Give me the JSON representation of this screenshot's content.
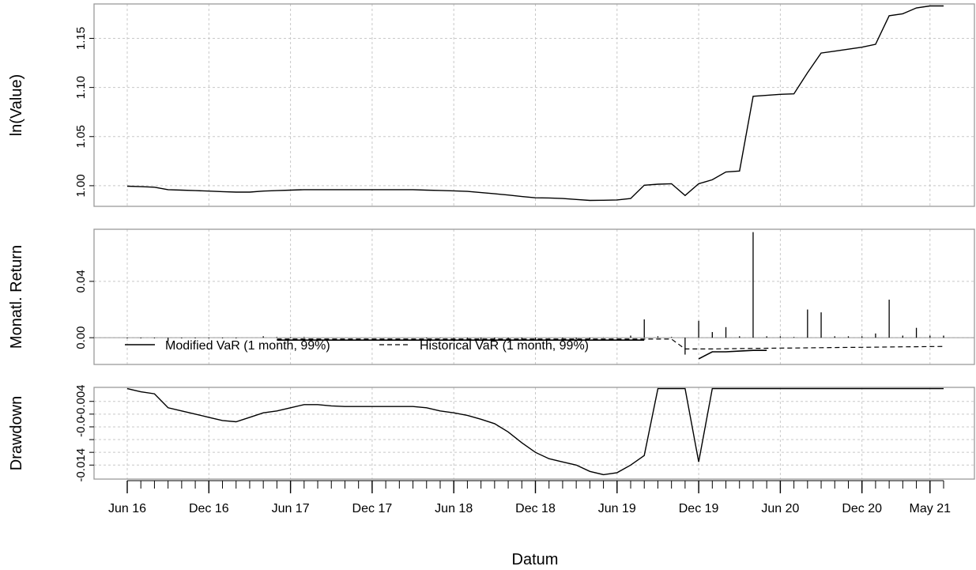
{
  "chart_data": [
    {
      "type": "line",
      "panel": "value",
      "ylabel": "ln(Value)",
      "yticks": [
        1.0,
        1.05,
        1.1,
        1.15
      ],
      "ytick_labels": [
        "1.00",
        "1.05",
        "1.10",
        "1.15"
      ],
      "ylim": [
        0.979,
        1.185
      ],
      "grid": true,
      "x": [
        0,
        1,
        2,
        3,
        4,
        5,
        6,
        7,
        8,
        9,
        10,
        11,
        12,
        13,
        14,
        15,
        16,
        17,
        18,
        19,
        20,
        21,
        22,
        23,
        24,
        25,
        26,
        27,
        28,
        29,
        30,
        31,
        32,
        33,
        34,
        35,
        36,
        37,
        38,
        39,
        40,
        41,
        42,
        43,
        44,
        45,
        46,
        47,
        48,
        49,
        50,
        51,
        52,
        53,
        54,
        55,
        56,
        57,
        58,
        59,
        60
      ],
      "values": [
        0.9995,
        0.999,
        0.9985,
        0.996,
        0.9955,
        0.995,
        0.9945,
        0.994,
        0.9935,
        0.9935,
        0.9945,
        0.995,
        0.9955,
        0.996,
        0.996,
        0.996,
        0.996,
        0.996,
        0.996,
        0.996,
        0.996,
        0.996,
        0.9955,
        0.9952,
        0.9948,
        0.9942,
        0.993,
        0.9918,
        0.9905,
        0.989,
        0.9877,
        0.9875,
        0.987,
        0.986,
        0.985,
        0.9852,
        0.9855,
        0.987,
        1.0005,
        1.0015,
        1.002,
        0.99,
        1.002,
        1.006,
        1.014,
        1.015,
        1.091,
        1.092,
        1.093,
        1.0935,
        1.115,
        1.135,
        1.137,
        1.139,
        1.141,
        1.144,
        1.173,
        1.175,
        1.181,
        1.183,
        1.183
      ]
    },
    {
      "type": "bar",
      "panel": "returns",
      "ylabel": "Monatl. Return",
      "yticks": [
        0.0,
        0.04
      ],
      "ytick_labels": [
        "0.00",
        "0.04"
      ],
      "ylim": [
        -0.019,
        0.077
      ],
      "grid": true,
      "x": [
        0,
        1,
        2,
        3,
        4,
        5,
        6,
        7,
        8,
        9,
        10,
        11,
        12,
        13,
        14,
        15,
        16,
        17,
        18,
        19,
        20,
        21,
        22,
        23,
        24,
        25,
        26,
        27,
        28,
        29,
        30,
        31,
        32,
        33,
        34,
        35,
        36,
        37,
        38,
        39,
        40,
        41,
        42,
        43,
        44,
        45,
        46,
        47,
        48,
        49,
        50,
        51,
        52,
        53,
        54,
        55,
        56,
        57,
        58,
        59,
        60
      ],
      "values": [
        -0.0005,
        -0.0005,
        -0.0005,
        -0.0025,
        -0.0005,
        -0.0005,
        -0.0005,
        -0.0005,
        -0.0005,
        0.0,
        0.001,
        0.0005,
        0.0005,
        0.0005,
        0.0,
        0.0,
        0.0,
        0.0,
        0.0,
        0.0,
        0.0,
        0.0,
        -0.0005,
        -0.0003,
        -0.0004,
        -0.0006,
        -0.0012,
        -0.0012,
        -0.0013,
        -0.0015,
        -0.0013,
        -0.0002,
        -0.0005,
        -0.001,
        -0.001,
        0.0002,
        0.0003,
        0.0015,
        0.013,
        0.001,
        0.0005,
        -0.012,
        0.012,
        0.004,
        0.0075,
        0.001,
        0.075,
        0.001,
        0.001,
        0.0005,
        0.02,
        0.018,
        0.001,
        0.001,
        0.001,
        0.003,
        0.027,
        0.0015,
        0.007,
        0.0015,
        0.0015
      ],
      "modified_var": {
        "label": "Modified VaR (1 month, 99%)",
        "x": [
          11,
          12,
          13,
          14,
          15,
          16,
          17,
          18,
          19,
          20,
          21,
          22,
          23,
          24,
          25,
          26,
          27,
          28,
          29,
          30,
          31,
          32,
          33,
          34,
          35,
          36,
          37,
          38,
          39,
          40,
          41,
          42,
          43,
          44,
          45,
          46,
          47
        ],
        "values": [
          -0.0017,
          -0.0017,
          -0.0017,
          -0.0017,
          -0.0017,
          -0.0017,
          -0.0017,
          -0.0017,
          -0.0017,
          -0.0017,
          -0.0017,
          -0.0017,
          -0.0017,
          -0.0017,
          -0.0017,
          -0.0017,
          -0.0017,
          -0.0017,
          -0.0017,
          -0.0017,
          -0.0017,
          -0.0017,
          -0.0017,
          -0.0017,
          -0.0017,
          -0.0017,
          -0.0017,
          -0.0017,
          null,
          null,
          null,
          -0.015,
          -0.01,
          -0.01,
          -0.0095,
          -0.009,
          -0.009
        ]
      },
      "historical_var": {
        "label": "Historical VaR (1 month, 99%)",
        "x": [
          11,
          20,
          30,
          39,
          40,
          41,
          42,
          43,
          44,
          45,
          46,
          47,
          48,
          49,
          50,
          51,
          52,
          53,
          54,
          55,
          56,
          57,
          58,
          59,
          60
        ],
        "values": [
          -0.001,
          -0.001,
          -0.001,
          -0.001,
          -0.001,
          -0.008,
          -0.008,
          -0.008,
          -0.0078,
          -0.0077,
          -0.0076,
          -0.0075,
          -0.0074,
          -0.0073,
          -0.0072,
          -0.0071,
          -0.007,
          -0.0069,
          -0.0068,
          -0.0067,
          -0.0066,
          -0.0065,
          -0.0064,
          -0.0063,
          -0.0062
        ]
      },
      "legend": {
        "entries": [
          "Modified VaR (1 month, 99%)",
          "Historical VaR (1 month, 99%)"
        ],
        "placement": "bottom-left"
      }
    },
    {
      "type": "line",
      "panel": "drawdown",
      "ylabel": "Drawdown",
      "yticks": [
        -0.004,
        -0.006,
        -0.008,
        -0.01,
        -0.012,
        -0.014
      ],
      "ytick_labels": [
        "-0.004",
        "",
        "-0.0",
        "",
        "",
        "-0.014"
      ],
      "extra_tick_labels": [
        "-0.004",
        "-0.0",
        "-0.014"
      ],
      "ylim": [
        -0.0162,
        -0.0018
      ],
      "grid": true,
      "x": [
        0,
        1,
        2,
        3,
        4,
        5,
        6,
        7,
        8,
        9,
        10,
        11,
        12,
        13,
        14,
        15,
        16,
        17,
        18,
        19,
        20,
        21,
        22,
        23,
        24,
        25,
        26,
        27,
        28,
        29,
        30,
        31,
        32,
        33,
        34,
        35,
        36,
        37,
        38,
        39,
        40,
        41,
        42,
        43,
        44,
        45,
        46,
        47,
        48,
        49,
        50,
        51,
        52,
        53,
        54,
        55,
        56,
        57,
        58,
        59,
        60
      ],
      "values": [
        -0.002,
        -0.0025,
        -0.0028,
        -0.005,
        -0.0055,
        -0.006,
        -0.0065,
        -0.007,
        -0.0072,
        -0.0065,
        -0.0058,
        -0.0055,
        -0.005,
        -0.0045,
        -0.0045,
        -0.0047,
        -0.0048,
        -0.0048,
        -0.0048,
        -0.0048,
        -0.0048,
        -0.0048,
        -0.005,
        -0.0055,
        -0.0058,
        -0.0062,
        -0.0068,
        -0.0075,
        -0.0088,
        -0.0105,
        -0.012,
        -0.013,
        -0.0135,
        -0.014,
        -0.015,
        -0.0155,
        -0.0152,
        -0.014,
        -0.0125,
        -0.002,
        -0.002,
        -0.002,
        -0.0135,
        -0.002,
        -0.002,
        -0.002,
        -0.002,
        -0.002,
        -0.002,
        -0.002,
        -0.002,
        -0.002,
        -0.002,
        -0.002,
        -0.002,
        -0.002,
        -0.002,
        -0.002,
        -0.002,
        -0.002,
        -0.002
      ]
    }
  ],
  "x_axis": {
    "label": "Datum",
    "ticks": [
      {
        "x": 0,
        "label": "Jun 16"
      },
      {
        "x": 6,
        "label": "Dec 16"
      },
      {
        "x": 12,
        "label": "Jun 17"
      },
      {
        "x": 18,
        "label": "Dec 17"
      },
      {
        "x": 24,
        "label": "Jun 18"
      },
      {
        "x": 30,
        "label": "Dec 18"
      },
      {
        "x": 36,
        "label": "Jun 19"
      },
      {
        "x": 42,
        "label": "Dec 19"
      },
      {
        "x": 48,
        "label": "Jun 20"
      },
      {
        "x": 54,
        "label": "Dec 20"
      },
      {
        "x": 59,
        "label": "May 21"
      }
    ],
    "minor_ticks_every": 1,
    "range": [
      0,
      60
    ]
  }
}
